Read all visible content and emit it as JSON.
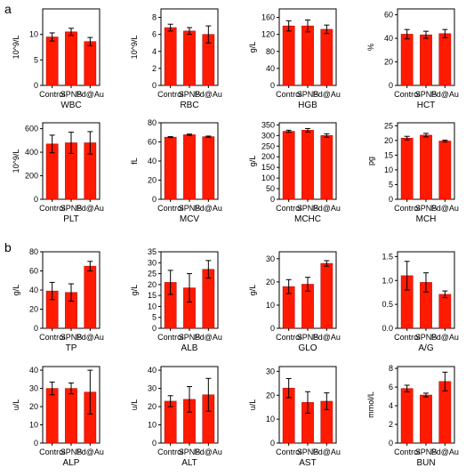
{
  "panels": {
    "a": "a",
    "b": "b"
  },
  "style": {
    "bar_color": "#ff1a00",
    "axis_color": "#000000",
    "error_color": "#000000"
  },
  "chart_data": [
    {
      "type": "bar",
      "categories": [
        "Control",
        "SPNS",
        "Pd@Au"
      ],
      "title": "",
      "xlabel": "WBC",
      "ylabel": "10^9/L",
      "ylim": [
        0,
        15
      ],
      "yticks": [
        0,
        5,
        10
      ],
      "values": [
        9.5,
        10.5,
        8.6
      ],
      "errors": [
        0.8,
        0.7,
        0.8
      ]
    },
    {
      "type": "bar",
      "categories": [
        "Control",
        "SPNS",
        "Pd@Au"
      ],
      "title": "",
      "xlabel": "RBC",
      "ylabel": "10^9/L",
      "ylim": [
        0,
        9
      ],
      "yticks": [
        0,
        2,
        4,
        6,
        8
      ],
      "values": [
        6.8,
        6.4,
        6.0
      ],
      "errors": [
        0.4,
        0.4,
        1.0
      ]
    },
    {
      "type": "bar",
      "categories": [
        "Control",
        "SPNS",
        "Pd@Au"
      ],
      "title": "",
      "xlabel": "HGB",
      "ylabel": "g/L",
      "ylim": [
        0,
        180
      ],
      "yticks": [
        0,
        40,
        80,
        120,
        160
      ],
      "values": [
        140,
        140,
        132
      ],
      "errors": [
        12,
        14,
        10
      ]
    },
    {
      "type": "bar",
      "categories": [
        "Control",
        "SPNS",
        "Pd@Au"
      ],
      "title": "",
      "xlabel": "HCT",
      "ylabel": "%",
      "ylim": [
        0,
        65
      ],
      "yticks": [
        0,
        20,
        40,
        60
      ],
      "values": [
        43.5,
        43.0,
        44.0
      ],
      "errors": [
        4,
        3,
        3.5
      ]
    },
    {
      "type": "bar",
      "categories": [
        "Control",
        "SPNS",
        "Pd@Au"
      ],
      "title": "",
      "xlabel": "PLT",
      "ylabel": "10^9/L",
      "ylim": [
        0,
        650
      ],
      "yticks": [
        0,
        200,
        400,
        600
      ],
      "values": [
        470,
        480,
        480
      ],
      "errors": [
        75,
        90,
        95
      ]
    },
    {
      "type": "bar",
      "categories": [
        "Control",
        "SPNS",
        "Pd@Au"
      ],
      "title": "",
      "xlabel": "MCV",
      "ylabel": "fL",
      "ylim": [
        0,
        80
      ],
      "yticks": [
        0,
        20,
        40,
        60,
        80
      ],
      "values": [
        65,
        67.5,
        65.5
      ],
      "errors": [
        0.5,
        0.7,
        0.6
      ]
    },
    {
      "type": "bar",
      "categories": [
        "Control",
        "SPNS",
        "Pd@Au"
      ],
      "title": "",
      "xlabel": "MCHC",
      "ylabel": "g/L",
      "ylim": [
        0,
        360
      ],
      "yticks": [
        0,
        50,
        100,
        150,
        200,
        250,
        300,
        350
      ],
      "values": [
        320,
        325,
        300
      ],
      "errors": [
        5,
        8,
        8
      ]
    },
    {
      "type": "bar",
      "categories": [
        "Control",
        "SPNS",
        "Pd@Au"
      ],
      "title": "",
      "xlabel": "MCH",
      "ylabel": "pg",
      "ylim": [
        0,
        26
      ],
      "yticks": [
        0,
        5,
        10,
        15,
        20,
        25
      ],
      "values": [
        20.8,
        21.8,
        19.8
      ],
      "errors": [
        0.6,
        0.6,
        0.3
      ]
    },
    {
      "type": "bar",
      "categories": [
        "Control",
        "SPNS",
        "Pd@Au"
      ],
      "title": "",
      "xlabel": "TP",
      "ylabel": "g/L",
      "ylim": [
        0,
        80
      ],
      "yticks": [
        0,
        20,
        40,
        60,
        80
      ],
      "values": [
        39,
        37.5,
        65
      ],
      "errors": [
        9,
        9,
        5
      ]
    },
    {
      "type": "bar",
      "categories": [
        "Control",
        "SPNS",
        "Pd@Au"
      ],
      "title": "",
      "xlabel": "ALB",
      "ylabel": "g/L",
      "ylim": [
        0,
        35
      ],
      "yticks": [
        0,
        5,
        10,
        15,
        20,
        25,
        30,
        35
      ],
      "values": [
        21,
        18.5,
        27
      ],
      "errors": [
        5.5,
        6.5,
        4
      ]
    },
    {
      "type": "bar",
      "categories": [
        "Control",
        "SPNS",
        "Pd@Au"
      ],
      "title": "",
      "xlabel": "GLO",
      "ylabel": "g/L",
      "ylim": [
        0,
        33
      ],
      "yticks": [
        0,
        10,
        20,
        30
      ],
      "values": [
        18,
        19,
        28
      ],
      "errors": [
        3,
        3,
        1.2
      ]
    },
    {
      "type": "bar",
      "categories": [
        "Control",
        "SPNS",
        "Pd@Au"
      ],
      "title": "",
      "xlabel": "A/G",
      "ylabel": "",
      "ylim": [
        0,
        1.6
      ],
      "yticks": [
        0.0,
        0.5,
        1.0,
        1.5
      ],
      "yticklabels": [
        "0.0",
        "0.5",
        "1.0",
        "1.5"
      ],
      "values": [
        1.1,
        0.96,
        0.71
      ],
      "errors": [
        0.3,
        0.2,
        0.07
      ]
    },
    {
      "type": "bar",
      "categories": [
        "Control",
        "SPNS",
        "Pd@Au"
      ],
      "title": "",
      "xlabel": "ALP",
      "ylabel": "u/L",
      "ylim": [
        0,
        42
      ],
      "yticks": [
        0,
        10,
        20,
        30,
        40
      ],
      "values": [
        30,
        30,
        28
      ],
      "errors": [
        3.5,
        3,
        12
      ]
    },
    {
      "type": "bar",
      "categories": [
        "Control",
        "SPNS",
        "Pd@Au"
      ],
      "title": "",
      "xlabel": "ALT",
      "ylabel": "u/L",
      "ylim": [
        0,
        42
      ],
      "yticks": [
        0,
        10,
        20,
        30,
        40
      ],
      "values": [
        23,
        24,
        26.5
      ],
      "errors": [
        3,
        7,
        9
      ]
    },
    {
      "type": "bar",
      "categories": [
        "Control",
        "SPNS",
        "Pd@Au"
      ],
      "title": "",
      "xlabel": "AST",
      "ylabel": "u/L",
      "ylim": [
        0,
        32
      ],
      "yticks": [
        0,
        10,
        20,
        30
      ],
      "values": [
        23,
        17,
        17.5
      ],
      "errors": [
        4,
        4.5,
        3.5
      ]
    },
    {
      "type": "bar",
      "categories": [
        "Control",
        "SPNS",
        "Pd@Au"
      ],
      "title": "",
      "xlabel": "BUN",
      "ylabel": "mmol/L",
      "ylim": [
        0,
        8.2
      ],
      "yticks": [
        0,
        2,
        4,
        6,
        8
      ],
      "values": [
        5.85,
        5.15,
        6.6
      ],
      "errors": [
        0.35,
        0.2,
        1.0
      ]
    }
  ]
}
